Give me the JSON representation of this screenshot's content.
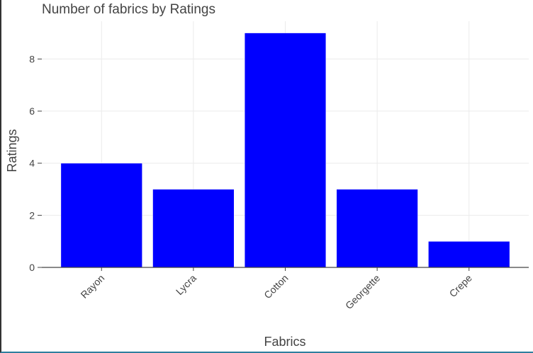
{
  "chart_data": {
    "type": "bar",
    "title": "Number of fabrics by Ratings",
    "xlabel": "Fabrics",
    "ylabel": "Ratings",
    "categories": [
      "Rayon",
      "Lycra",
      "Cotton",
      "Georgette",
      "Crepe"
    ],
    "values": [
      4,
      3,
      9,
      3,
      1
    ],
    "ylim": [
      0,
      9.45
    ],
    "yticks": [
      0,
      2,
      4,
      6,
      8
    ],
    "grid": true,
    "bar_color": "#0000ff",
    "grid_color": "#ebebeb",
    "axis_color": "#444444"
  }
}
